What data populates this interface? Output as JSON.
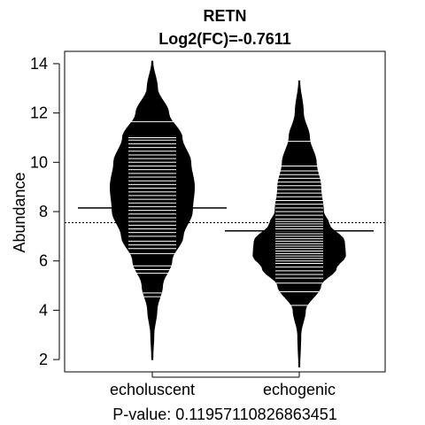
{
  "chart_data": {
    "type": "beanplot",
    "title": "RETN",
    "subtitle": "Log2(FC)=-0.7611",
    "ylabel": "Abundance",
    "xlabel": "P-value: 0.119571108268634​51",
    "ylim": [
      1.5,
      14.5
    ],
    "yticks": [
      2,
      4,
      6,
      8,
      10,
      12,
      14
    ],
    "categories": [
      "echoluscent",
      "echogenic"
    ],
    "overall_mean": 7.55,
    "series": [
      {
        "name": "echoluscent",
        "mean": 8.15,
        "range": [
          2.0,
          14.1
        ],
        "density_profile": [
          [
            2.0,
            0.01
          ],
          [
            3.0,
            0.03
          ],
          [
            4.0,
            0.09
          ],
          [
            5.0,
            0.2
          ],
          [
            6.0,
            0.38
          ],
          [
            7.0,
            0.6
          ],
          [
            8.0,
            0.78
          ],
          [
            9.0,
            0.82
          ],
          [
            10.0,
            0.75
          ],
          [
            11.0,
            0.58
          ],
          [
            12.0,
            0.32
          ],
          [
            13.0,
            0.1
          ],
          [
            14.1,
            0.01
          ]
        ],
        "points": [
          4.55,
          4.7,
          5.5,
          5.65,
          5.8,
          6.3,
          6.5,
          6.65,
          6.8,
          7.0,
          7.15,
          7.3,
          7.45,
          7.6,
          7.75,
          7.9,
          8.05,
          8.2,
          8.35,
          8.5,
          8.65,
          8.8,
          8.95,
          9.1,
          9.25,
          9.4,
          9.55,
          9.7,
          9.85,
          10.0,
          10.15,
          10.3,
          10.45,
          10.6,
          10.75,
          10.9,
          11.0,
          11.65
        ]
      },
      {
        "name": "echogenic",
        "mean": 7.22,
        "range": [
          1.7,
          13.3
        ],
        "density_profile": [
          [
            1.7,
            0.01
          ],
          [
            3.0,
            0.03
          ],
          [
            4.0,
            0.12
          ],
          [
            5.0,
            0.42
          ],
          [
            5.7,
            0.72
          ],
          [
            6.2,
            0.9
          ],
          [
            6.8,
            0.88
          ],
          [
            7.5,
            0.58
          ],
          [
            8.0,
            0.47
          ],
          [
            9.0,
            0.42
          ],
          [
            10.0,
            0.33
          ],
          [
            11.0,
            0.2
          ],
          [
            12.0,
            0.08
          ],
          [
            13.3,
            0.01
          ]
        ],
        "points": [
          4.2,
          4.75,
          5.1,
          5.3,
          5.45,
          5.6,
          5.75,
          5.9,
          6.0,
          6.1,
          6.2,
          6.3,
          6.4,
          6.5,
          6.6,
          6.7,
          6.8,
          6.9,
          7.0,
          7.1,
          7.2,
          7.3,
          7.4,
          7.5,
          7.6,
          7.7,
          7.85,
          8.0,
          8.15,
          8.3,
          8.45,
          8.6,
          8.75,
          8.9,
          9.05,
          9.2,
          9.35,
          9.5,
          9.65,
          9.85,
          10.85
        ]
      }
    ]
  }
}
